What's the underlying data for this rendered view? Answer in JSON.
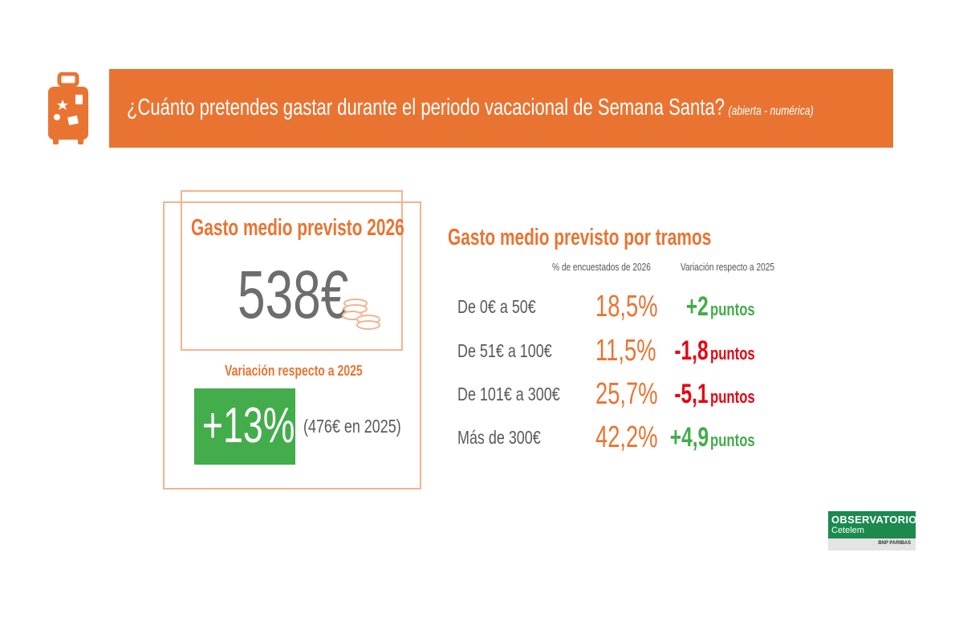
{
  "header": {
    "title": "¿Cuánto pretendes gastar durante el periodo vacacional de Semana Santa?",
    "note": "(abierta - numérica)",
    "icon": "suitcase-icon"
  },
  "summary": {
    "title": "Gasto medio previsto 2026",
    "value": "538€",
    "variation_label": "Variación respecto a 2025",
    "variation_value": "+13%",
    "previous": "(476€ en 2025)"
  },
  "colors": {
    "orange": "#e97432",
    "green": "#43ac4b",
    "red": "#e30613",
    "grey": "#6d6d6d"
  },
  "chart_data": {
    "type": "table",
    "title": "Gasto medio previsto por tramos",
    "columns": [
      "% de encuestados de 2026",
      "Variación respecto a 2025"
    ],
    "rows": [
      {
        "label": "De 0€ a 50€",
        "percent": "18,5%",
        "variation": "+2",
        "unit": "puntos",
        "trend": "up"
      },
      {
        "label": "De 51€ a 100€",
        "percent": "11,5%",
        "variation": "-1,8",
        "unit": "puntos",
        "trend": "down"
      },
      {
        "label": "De 101€ a 300€",
        "percent": "25,7%",
        "variation": "-5,1",
        "unit": "puntos",
        "trend": "down"
      },
      {
        "label": "Más de 300€",
        "percent": "42,2%",
        "variation": "+4,9",
        "unit": "puntos",
        "trend": "up"
      }
    ]
  },
  "logo": {
    "line1": "OBSERVATORIO",
    "line2": "Cetelem",
    "line3": "BNP PARIBAS"
  }
}
